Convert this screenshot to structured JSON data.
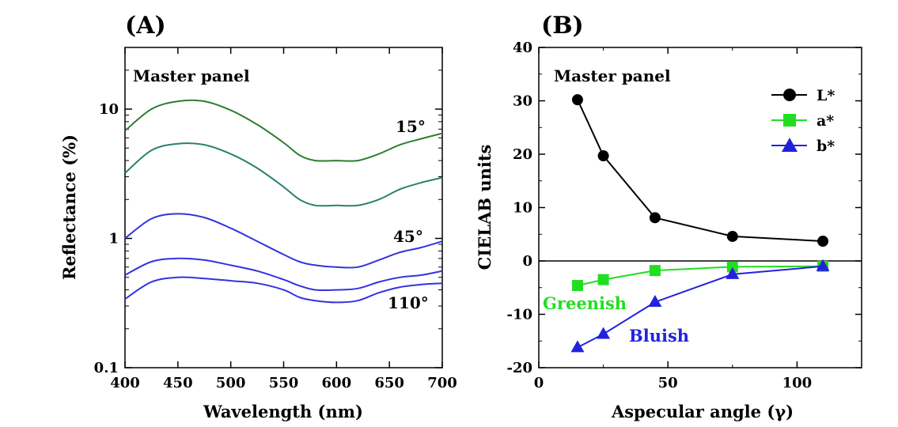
{
  "chart_data": [
    {
      "type": "line",
      "panel_label": "(A)",
      "annotation": "Master panel",
      "xlabel": "Wavelength (nm)",
      "ylabel": "Reflectance (%)",
      "xlim": [
        400,
        700
      ],
      "ylim": [
        0.1,
        30
      ],
      "yscale": "log",
      "x_ticks": [
        400,
        450,
        500,
        550,
        600,
        650,
        700
      ],
      "y_ticks": [
        {
          "value": 0.1,
          "label": "0.1"
        },
        {
          "value": 1,
          "label": "1"
        },
        {
          "value": 10,
          "label": "10"
        }
      ],
      "x": [
        400,
        425,
        450,
        475,
        500,
        525,
        550,
        565,
        580,
        600,
        620,
        640,
        660,
        680,
        700
      ],
      "series": [
        {
          "label": "15°",
          "color": "#2e7d32",
          "values": [
            6.8,
            10.0,
            11.5,
            11.5,
            9.8,
            7.6,
            5.5,
            4.4,
            4.0,
            4.0,
            4.0,
            4.5,
            5.3,
            5.9,
            6.5
          ]
        },
        {
          "label": "",
          "color": "#2a8070",
          "values": [
            3.2,
            4.8,
            5.4,
            5.3,
            4.5,
            3.5,
            2.5,
            2.0,
            1.8,
            1.8,
            1.8,
            2.0,
            2.4,
            2.7,
            2.95
          ]
        },
        {
          "label": "45°",
          "color": "#3333dd",
          "values": [
            1.0,
            1.42,
            1.55,
            1.45,
            1.2,
            0.95,
            0.75,
            0.66,
            0.62,
            0.6,
            0.6,
            0.68,
            0.78,
            0.85,
            0.95
          ]
        },
        {
          "label": "",
          "color": "#3333dd",
          "values": [
            0.52,
            0.66,
            0.7,
            0.68,
            0.62,
            0.56,
            0.48,
            0.43,
            0.4,
            0.4,
            0.41,
            0.46,
            0.5,
            0.52,
            0.56
          ]
        },
        {
          "label": "110°",
          "color": "#3333dd",
          "values": [
            0.34,
            0.46,
            0.5,
            0.49,
            0.47,
            0.45,
            0.4,
            0.35,
            0.33,
            0.32,
            0.33,
            0.38,
            0.42,
            0.44,
            0.45
          ]
        }
      ]
    },
    {
      "type": "line",
      "panel_label": "(B)",
      "annotation": "Master panel",
      "xlabel": "Aspecular angle (γ)",
      "ylabel": "CIELAB units",
      "xlim": [
        0,
        125
      ],
      "ylim": [
        -20,
        40
      ],
      "x_ticks": [
        0,
        50,
        100
      ],
      "y_ticks": [
        -20,
        -10,
        0,
        10,
        20,
        30,
        40
      ],
      "legend_position": "top-right",
      "x": [
        15,
        25,
        45,
        75,
        110
      ],
      "series": [
        {
          "name": "L*",
          "color": "#000000",
          "marker": "circle",
          "values": [
            30.2,
            19.7,
            8.1,
            4.6,
            3.7
          ]
        },
        {
          "name": "a*",
          "color": "#22dd22",
          "marker": "square",
          "values": [
            -4.6,
            -3.5,
            -1.8,
            -1.1,
            -1.0
          ]
        },
        {
          "name": "b*",
          "color": "#2222dd",
          "marker": "triangle",
          "values": [
            -16.2,
            -13.7,
            -7.7,
            -2.5,
            -1.0
          ]
        }
      ],
      "annotations": [
        {
          "text": "Greenish",
          "color": "#22dd22"
        },
        {
          "text": "Bluish",
          "color": "#2222dd"
        }
      ]
    }
  ]
}
